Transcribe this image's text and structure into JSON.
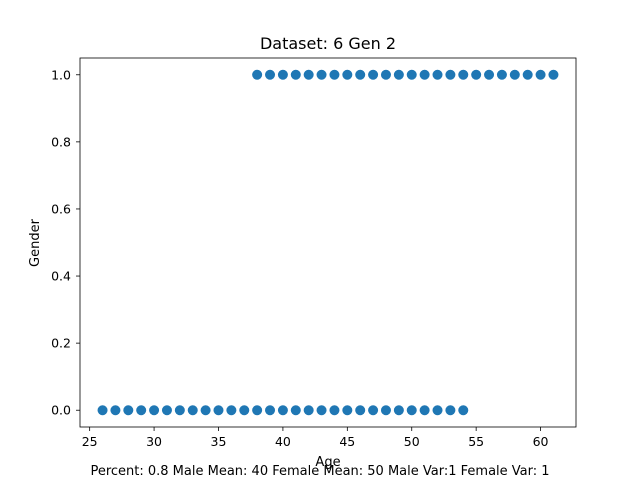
{
  "chart_data": {
    "type": "scatter",
    "title": "Dataset: 6 Gen 2",
    "xlabel": "Age",
    "ylabel": "Gender",
    "xlim": [
      24.25,
      62.75
    ],
    "ylim": [
      -0.05,
      1.05
    ],
    "x_ticks": [
      25,
      30,
      35,
      40,
      45,
      50,
      55,
      60
    ],
    "x_tick_labels": [
      "25",
      "30",
      "35",
      "40",
      "45",
      "50",
      "55",
      "60"
    ],
    "y_ticks": [
      0.0,
      0.2,
      0.4,
      0.6,
      0.8,
      1.0
    ],
    "y_tick_labels": [
      "0.0",
      "0.2",
      "0.4",
      "0.6",
      "0.8",
      "1.0"
    ],
    "grid": false,
    "marker_color": "#1f77b4",
    "series": [
      {
        "points": [
          [
            26,
            0
          ],
          [
            27,
            0
          ],
          [
            28,
            0
          ],
          [
            29,
            0
          ],
          [
            30,
            0
          ],
          [
            31,
            0
          ],
          [
            32,
            0
          ],
          [
            33,
            0
          ],
          [
            34,
            0
          ],
          [
            35,
            0
          ],
          [
            36,
            0
          ],
          [
            37,
            0
          ],
          [
            38,
            0
          ],
          [
            39,
            0
          ],
          [
            40,
            0
          ],
          [
            41,
            0
          ],
          [
            42,
            0
          ],
          [
            43,
            0
          ],
          [
            44,
            0
          ],
          [
            45,
            0
          ],
          [
            46,
            0
          ],
          [
            47,
            0
          ],
          [
            48,
            0
          ],
          [
            49,
            0
          ],
          [
            50,
            0
          ],
          [
            51,
            0
          ],
          [
            52,
            0
          ],
          [
            53,
            0
          ],
          [
            54,
            0
          ],
          [
            38,
            1
          ],
          [
            39,
            1
          ],
          [
            40,
            1
          ],
          [
            41,
            1
          ],
          [
            42,
            1
          ],
          [
            43,
            1
          ],
          [
            44,
            1
          ],
          [
            45,
            1
          ],
          [
            46,
            1
          ],
          [
            47,
            1
          ],
          [
            48,
            1
          ],
          [
            49,
            1
          ],
          [
            50,
            1
          ],
          [
            51,
            1
          ],
          [
            52,
            1
          ],
          [
            53,
            1
          ],
          [
            54,
            1
          ],
          [
            55,
            1
          ],
          [
            56,
            1
          ],
          [
            57,
            1
          ],
          [
            58,
            1
          ],
          [
            59,
            1
          ],
          [
            60,
            1
          ],
          [
            61,
            1
          ]
        ]
      }
    ],
    "footer": "Percent:  0.8 Male Mean: 40 Female Mean: 50 Male Var:1 Female Var: 1"
  }
}
